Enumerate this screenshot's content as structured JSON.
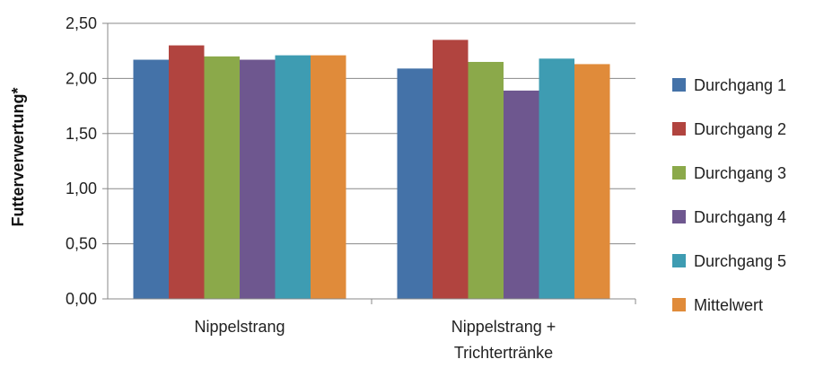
{
  "chart_data": {
    "type": "bar",
    "title": "",
    "xlabel": "",
    "ylabel": "Futterverwertung*",
    "ylim": [
      0,
      2.5
    ],
    "yticks": [
      "0,00",
      "0,50",
      "1,00",
      "1,50",
      "2,00",
      "2,50"
    ],
    "grid": true,
    "legend_position": "right",
    "categories": [
      [
        "Nippelstrang"
      ],
      [
        "Nippelstrang +",
        "Trichtertränke"
      ]
    ],
    "series": [
      {
        "name": "Durchgang 1",
        "color": "#4472A8",
        "values": [
          2.17,
          2.09
        ]
      },
      {
        "name": "Durchgang 2",
        "color": "#B1443F",
        "values": [
          2.3,
          2.35
        ]
      },
      {
        "name": "Durchgang 3",
        "color": "#8BA94A",
        "values": [
          2.2,
          2.15
        ]
      },
      {
        "name": "Durchgang 4",
        "color": "#6E578F",
        "values": [
          2.17,
          1.89
        ]
      },
      {
        "name": "Durchgang 5",
        "color": "#3E9CB2",
        "values": [
          2.21,
          2.18
        ]
      },
      {
        "name": "Mittelwert",
        "color": "#E08B3A",
        "values": [
          2.21,
          2.13
        ]
      }
    ]
  }
}
